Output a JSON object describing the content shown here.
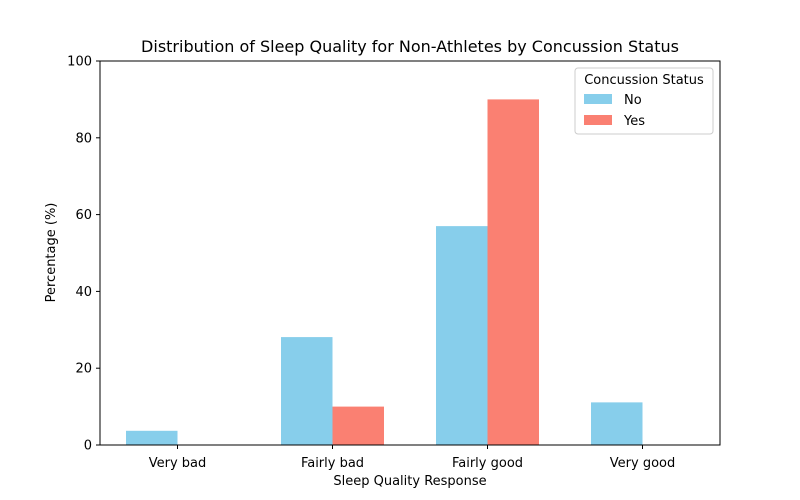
{
  "chart_data": {
    "type": "bar",
    "title": "Distribution of Sleep Quality for Non-Athletes by Concussion Status",
    "xlabel": "Sleep Quality Response",
    "ylabel": "Percentage (%)",
    "categories": [
      "Very bad",
      "Fairly bad",
      "Fairly good",
      "Very good"
    ],
    "series": [
      {
        "name": "No",
        "color": "#87CEEB",
        "values": [
          3.7,
          28.1,
          57.0,
          11.1
        ]
      },
      {
        "name": "Yes",
        "color": "#FA8072",
        "values": [
          0,
          10.0,
          90.0,
          0
        ]
      }
    ],
    "ylim": [
      0,
      100
    ],
    "yticks": [
      0,
      20,
      40,
      60,
      80,
      100
    ],
    "grid": false,
    "legend": {
      "title": "Concussion Status",
      "placement": "top-right"
    }
  }
}
